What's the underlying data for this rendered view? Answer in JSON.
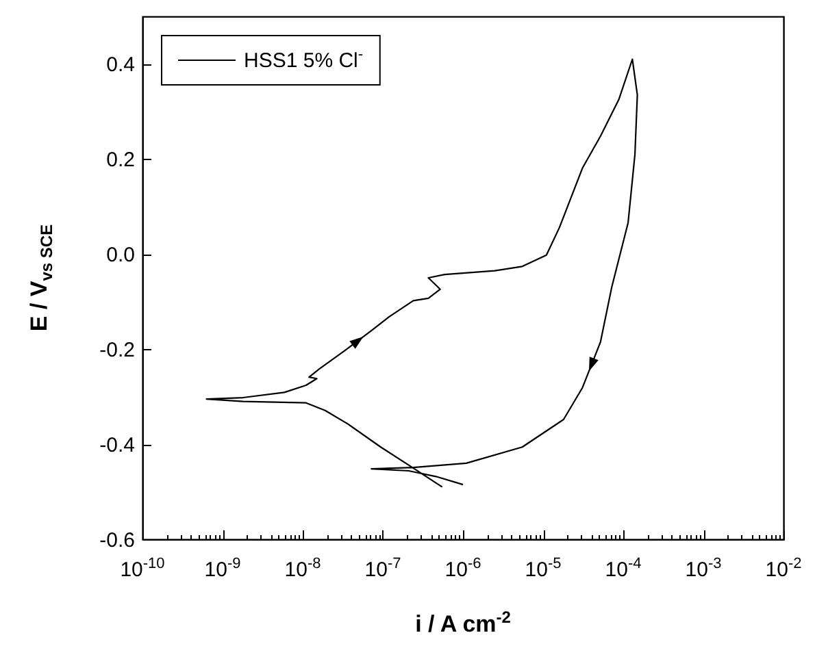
{
  "chart_data": {
    "type": "line",
    "xlabel": "i / A cm$^{-2}$",
    "ylabel": "E / V$_{vs SCE}$",
    "log": "x",
    "grid": false,
    "legend": "top left",
    "line_style": "solid",
    "xlim": [
      1e-10,
      0.01
    ],
    "ylim": [
      -0.6,
      0.5
    ],
    "xticks": [
      {
        "value": 1e-10,
        "label": "10$^{-10}$"
      },
      {
        "value": 2e-10,
        "label": null
      },
      {
        "value": 3e-10,
        "label": null
      },
      {
        "value": 4e-10,
        "label": null
      },
      {
        "value": 5e-10,
        "label": null
      },
      {
        "value": 6e-10,
        "label": null
      },
      {
        "value": 7e-10,
        "label": null
      },
      {
        "value": 8e-10,
        "label": null
      },
      {
        "value": 9e-10,
        "label": null
      },
      {
        "value": 1e-09,
        "label": "10$^{-9}$"
      },
      {
        "value": 2e-09,
        "label": null
      },
      {
        "value": 3e-09,
        "label": null
      },
      {
        "value": 4e-09,
        "label": null
      },
      {
        "value": 5e-09,
        "label": null
      },
      {
        "value": 6e-09,
        "label": null
      },
      {
        "value": 7e-09,
        "label": null
      },
      {
        "value": 8e-09,
        "label": null
      },
      {
        "value": 9e-09,
        "label": null
      },
      {
        "value": 1e-08,
        "label": "10$^{-8}$"
      },
      {
        "value": 2e-08,
        "label": null
      },
      {
        "value": 3e-08,
        "label": null
      },
      {
        "value": 4e-08,
        "label": null
      },
      {
        "value": 5e-08,
        "label": null
      },
      {
        "value": 6e-08,
        "label": null
      },
      {
        "value": 7e-08,
        "label": null
      },
      {
        "value": 8e-08,
        "label": null
      },
      {
        "value": 9e-08,
        "label": null
      },
      {
        "value": 1e-07,
        "label": "10$^{-7}$"
      },
      {
        "value": 2e-07,
        "label": null
      },
      {
        "value": 3e-07,
        "label": null
      },
      {
        "value": 4e-07,
        "label": null
      },
      {
        "value": 5e-07,
        "label": null
      },
      {
        "value": 6e-07,
        "label": null
      },
      {
        "value": 7e-07,
        "label": null
      },
      {
        "value": 8e-07,
        "label": null
      },
      {
        "value": 9e-07,
        "label": null
      },
      {
        "value": 1e-06,
        "label": "10$^{-6}$"
      },
      {
        "value": 2e-06,
        "label": null
      },
      {
        "value": 3e-06,
        "label": null
      },
      {
        "value": 4e-06,
        "label": null
      },
      {
        "value": 5e-06,
        "label": null
      },
      {
        "value": 6e-06,
        "label": null
      },
      {
        "value": 7e-06,
        "label": null
      },
      {
        "value": 8e-06,
        "label": null
      },
      {
        "value": 9e-06,
        "label": null
      },
      {
        "value": 1e-05,
        "label": "10$^{-5}$"
      },
      {
        "value": 2e-05,
        "label": null
      },
      {
        "value": 3e-05,
        "label": null
      },
      {
        "value": 4e-05,
        "label": null
      },
      {
        "value": 5e-05,
        "label": null
      },
      {
        "value": 6e-05,
        "label": null
      },
      {
        "value": 7e-05,
        "label": null
      },
      {
        "value": 8e-05,
        "label": null
      },
      {
        "value": 9e-05,
        "label": null
      },
      {
        "value": 0.0001,
        "label": "10$^{-4}$"
      },
      {
        "value": 0.0002,
        "label": null
      },
      {
        "value": 0.0003,
        "label": null
      },
      {
        "value": 0.0004,
        "label": null
      },
      {
        "value": 0.0005,
        "label": null
      },
      {
        "value": 0.0006,
        "label": null
      },
      {
        "value": 0.0007,
        "label": null
      },
      {
        "value": 0.0008,
        "label": null
      },
      {
        "value": 0.0009,
        "label": null
      },
      {
        "value": 0.001,
        "label": "10$^{-3}$"
      },
      {
        "value": 0.002,
        "label": null
      },
      {
        "value": 0.003,
        "label": null
      },
      {
        "value": 0.004,
        "label": null
      },
      {
        "value": 0.005,
        "label": null
      },
      {
        "value": 0.006,
        "label": null
      },
      {
        "value": 0.007,
        "label": null
      },
      {
        "value": 0.008,
        "label": null
      },
      {
        "value": 0.009,
        "label": null
      },
      {
        "value": 0.01,
        "label": "10$^{-2}$"
      }
    ],
    "yticks": [
      -0.6,
      -0.4,
      -0.2,
      {
        "value": 0,
        "label": "0.0"
      },
      0.2,
      0.4
    ],
    "series": [
      {
        "name": "HSS1 5% Cl$^{-}$",
        "color": "#000000",
        "x": [
          5.5e-07,
          2.1e-07,
          9.4e-08,
          3.7e-08,
          1.9e-08,
          1.1e-08,
          1.8e-09,
          6.3e-10,
          1.8e-09,
          5.9e-09,
          1.1e-08,
          1.5e-08,
          1.2e-08,
          1.6e-08,
          3.3e-08,
          7.2e-08,
          1.2e-07,
          2.4e-07,
          3.7e-07,
          5.2e-07,
          3.7e-07,
          5.9e-07,
          2.5e-06,
          5.5e-06,
          1.1e-05,
          1.6e-05,
          3.1e-05,
          5.2e-05,
          8.8e-05,
          0.00013,
          0.00015,
          0.00014,
          0.000115,
          7.2e-05,
          5.2e-05,
          3.1e-05,
          1.8e-05,
          5.5e-06,
          1.1e-06,
          2.4e-07,
          7.2e-08,
          2.1e-07,
          4.6e-07,
          1e-06
        ],
        "values": [
          -0.49,
          -0.444,
          -0.406,
          -0.358,
          -0.329,
          -0.313,
          -0.31,
          -0.305,
          -0.302,
          -0.291,
          -0.276,
          -0.262,
          -0.259,
          -0.242,
          -0.204,
          -0.161,
          -0.132,
          -0.098,
          -0.093,
          -0.074,
          -0.05,
          -0.043,
          -0.035,
          -0.026,
          -0.002,
          0.056,
          0.181,
          0.248,
          0.325,
          0.41,
          0.335,
          0.21,
          0.066,
          -0.069,
          -0.185,
          -0.281,
          -0.348,
          -0.406,
          -0.44,
          -0.449,
          -0.452,
          -0.456,
          -0.468,
          -0.485
        ]
      }
    ]
  }
}
